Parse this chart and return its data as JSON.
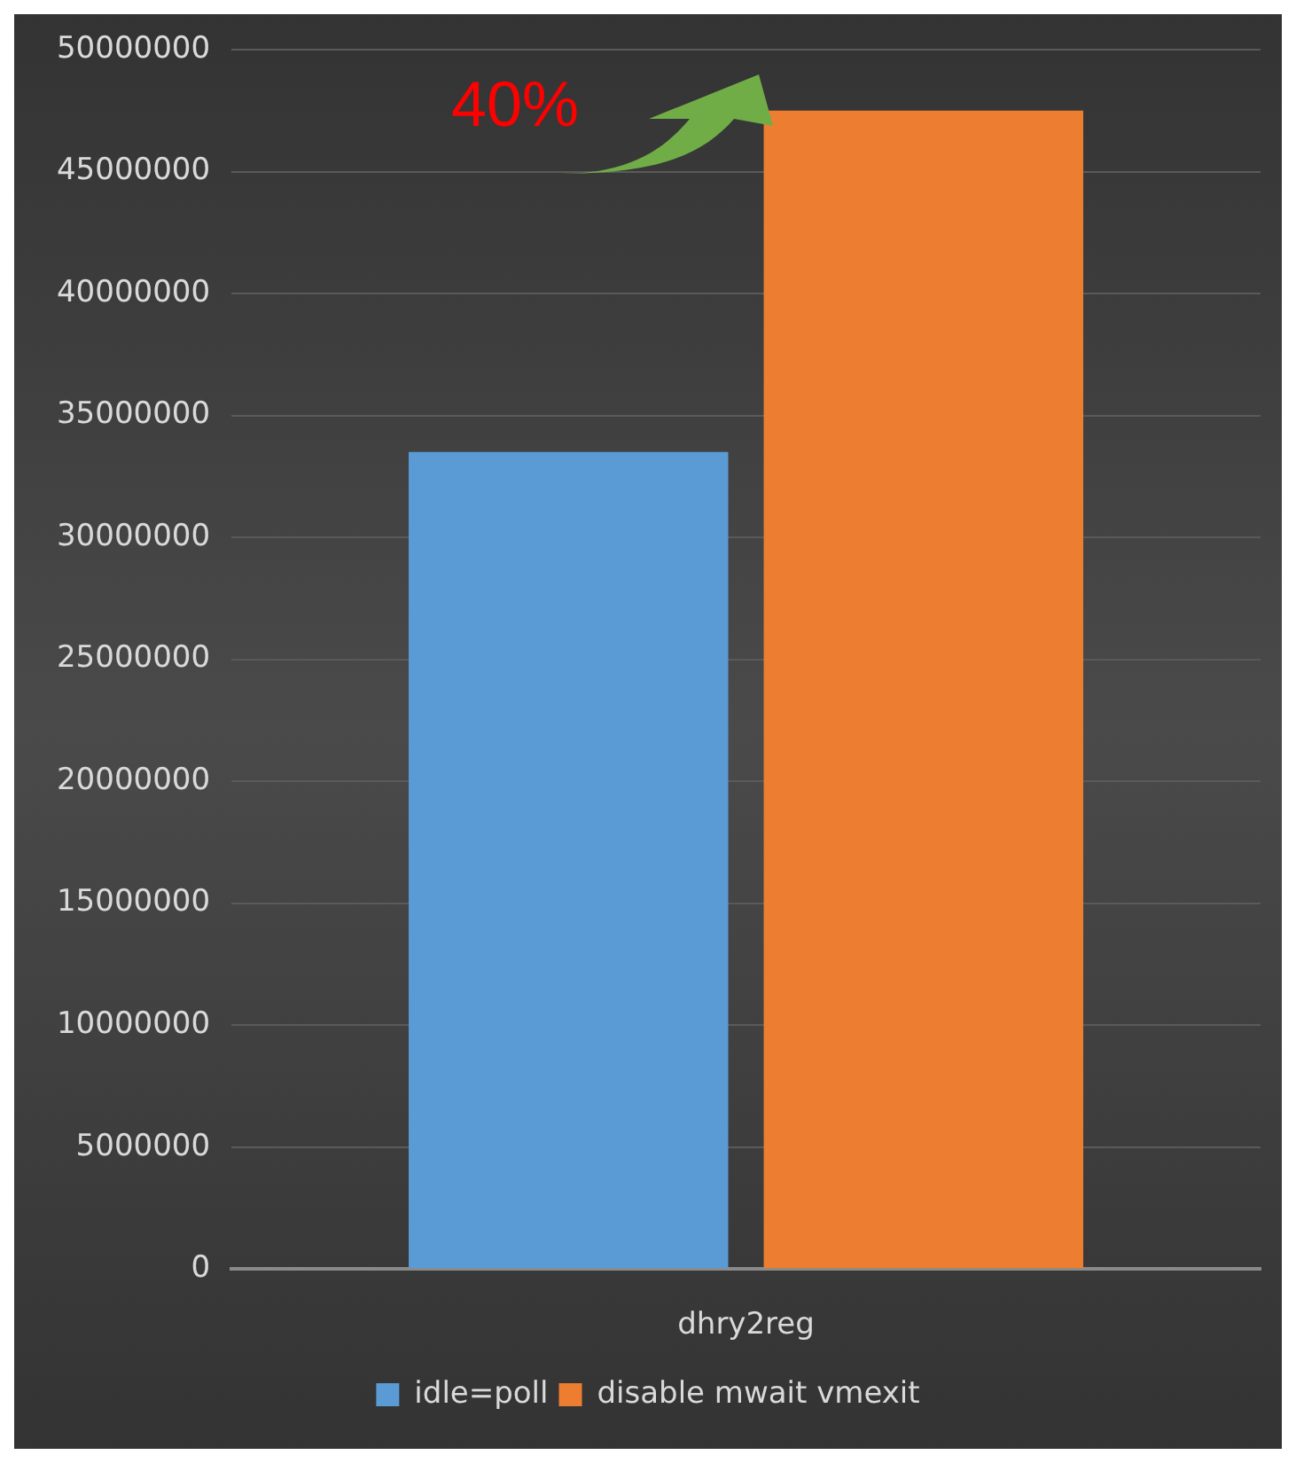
{
  "chart_data": {
    "type": "bar",
    "categories": [
      "dhry2reg"
    ],
    "series": [
      {
        "name": "idle=poll",
        "color": "#5b9bd5",
        "values": [
          33500000
        ]
      },
      {
        "name": "disable mwait vmexit",
        "color": "#ed7d31",
        "values": [
          47500000
        ]
      }
    ],
    "ylim": [
      0,
      50000000
    ],
    "yticks": [
      0,
      5000000,
      10000000,
      15000000,
      20000000,
      25000000,
      30000000,
      35000000,
      40000000,
      45000000,
      50000000
    ],
    "grid": "y",
    "legend": "bottom",
    "annotations": [
      "40%"
    ]
  }
}
